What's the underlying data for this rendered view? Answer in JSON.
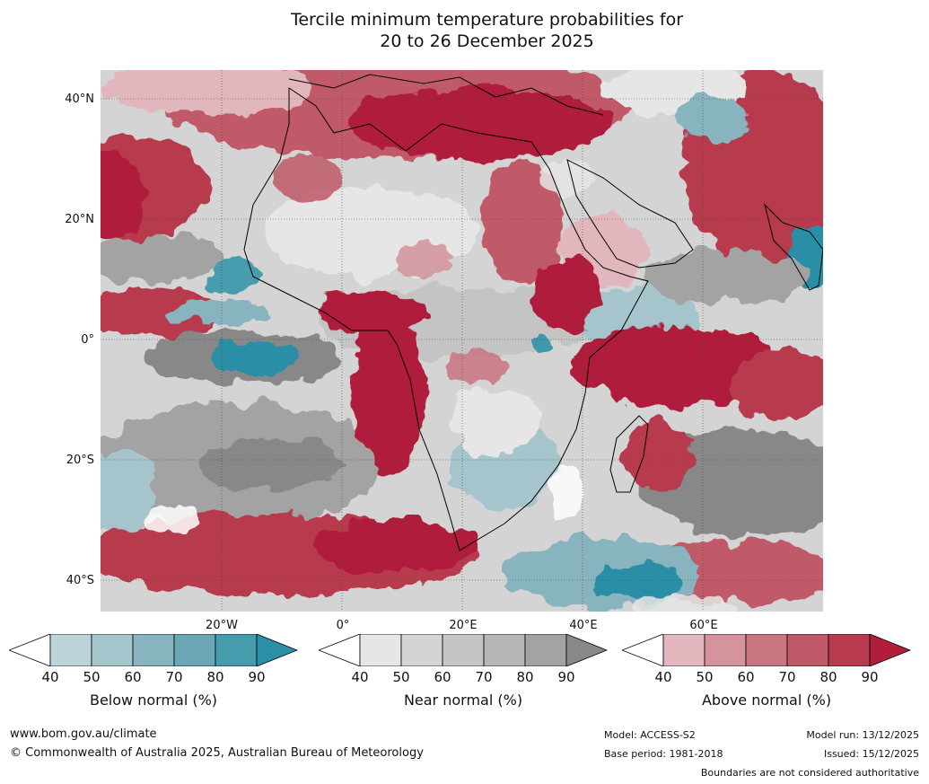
{
  "title": {
    "line1": "Tercile minimum temperature probabilities for",
    "line2": "20 to 26 December 2025"
  },
  "axes": {
    "lat_labels": [
      "40°N",
      "20°N",
      "0°",
      "20°S",
      "40°S"
    ],
    "lon_labels": [
      "20°W",
      "0°",
      "20°E",
      "40°E",
      "60°E"
    ]
  },
  "colorbars": [
    {
      "label": "Below normal (%)",
      "ticks": [
        "40",
        "50",
        "60",
        "70",
        "80",
        "90"
      ],
      "colors": [
        "#bdd3da",
        "#a5c4cc",
        "#87b4bf",
        "#6aa6b4",
        "#469cad",
        "#2b8fa6"
      ]
    },
    {
      "label": "Near normal (%)",
      "ticks": [
        "40",
        "50",
        "60",
        "70",
        "80",
        "90"
      ],
      "colors": [
        "#e6e6e6",
        "#d4d4d4",
        "#c4c4c4",
        "#b5b5b5",
        "#a3a3a3",
        "#888888"
      ]
    },
    {
      "label": "Above normal (%)",
      "ticks": [
        "40",
        "50",
        "60",
        "70",
        "80",
        "90"
      ],
      "colors": [
        "#e2b6bd",
        "#d4939d",
        "#c97680",
        "#c05a68",
        "#b83a4e",
        "#b01e3a"
      ]
    }
  ],
  "footer": {
    "website": "www.bom.gov.au/climate",
    "copyright": "© Commonwealth of Australia 2025, Australian Bureau of Meteorology",
    "model": "Model: ACCESS-S2",
    "base_period": "Base period: 1981-2018",
    "model_run": "Model run: 13/12/2025",
    "issued": "Issued: 15/12/2025",
    "disclaimer": "Boundaries are not considered authoritative"
  }
}
